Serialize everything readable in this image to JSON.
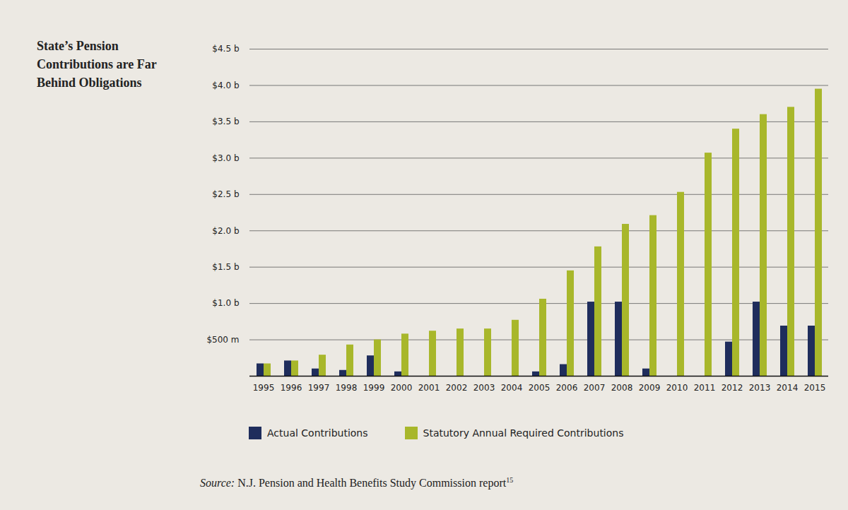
{
  "chart_data": {
    "type": "bar",
    "title": "State’s Pension Contributions are Far Behind Obligations",
    "categories": [
      "1995",
      "1996",
      "1997",
      "1998",
      "1999",
      "2000",
      "2001",
      "2002",
      "2003",
      "2004",
      "2005",
      "2006",
      "2007",
      "2008",
      "2009",
      "2010",
      "2011",
      "2012",
      "2013",
      "2014",
      "2015"
    ],
    "series": [
      {
        "name": "Actual Contributions",
        "color": "#1f2d5c",
        "values": [
          0.17,
          0.21,
          0.1,
          0.08,
          0.28,
          0.06,
          0,
          0,
          0,
          0,
          0.06,
          0.16,
          1.02,
          1.02,
          0.1,
          0,
          0,
          0.47,
          1.02,
          0.69,
          0.69
        ]
      },
      {
        "name": "Statutory Annual Required Contributions",
        "color": "#a8b72b",
        "values": [
          0.17,
          0.21,
          0.29,
          0.43,
          0.5,
          0.58,
          0.62,
          0.65,
          0.65,
          0.77,
          1.06,
          1.45,
          1.78,
          2.09,
          2.21,
          2.53,
          3.07,
          3.4,
          3.6,
          3.7,
          3.95
        ]
      }
    ],
    "ylim": [
      0,
      4.5
    ],
    "yticks": [
      {
        "value": 0.5,
        "label": "$500 m"
      },
      {
        "value": 1.0,
        "label": "$1.0 b"
      },
      {
        "value": 1.5,
        "label": "$1.5 b"
      },
      {
        "value": 2.0,
        "label": "$2.0 b"
      },
      {
        "value": 2.5,
        "label": "$2.5 b"
      },
      {
        "value": 3.0,
        "label": "$3.0 b"
      },
      {
        "value": 3.5,
        "label": "$3.5 b"
      },
      {
        "value": 4.0,
        "label": "$4.0 b"
      },
      {
        "value": 4.5,
        "label": "$4.5 b"
      }
    ],
    "grid": true,
    "legend": "bottom",
    "source": "Source: N.J. Pension and Health Benefits Study Commission report",
    "source_note": "15"
  }
}
